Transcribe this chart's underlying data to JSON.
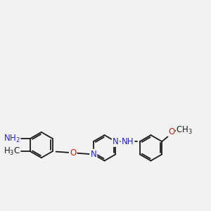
{
  "bg_color": "#f2f2f2",
  "bond_color": "#1a1a1a",
  "N_color": "#2222cc",
  "O_color": "#cc2200",
  "font_size": 8.5,
  "lw": 1.3,
  "figsize": [
    3.0,
    3.0
  ],
  "dpi": 100,
  "xlim": [
    -1.5,
    8.5
  ],
  "ylim": [
    -1.5,
    5.5
  ]
}
